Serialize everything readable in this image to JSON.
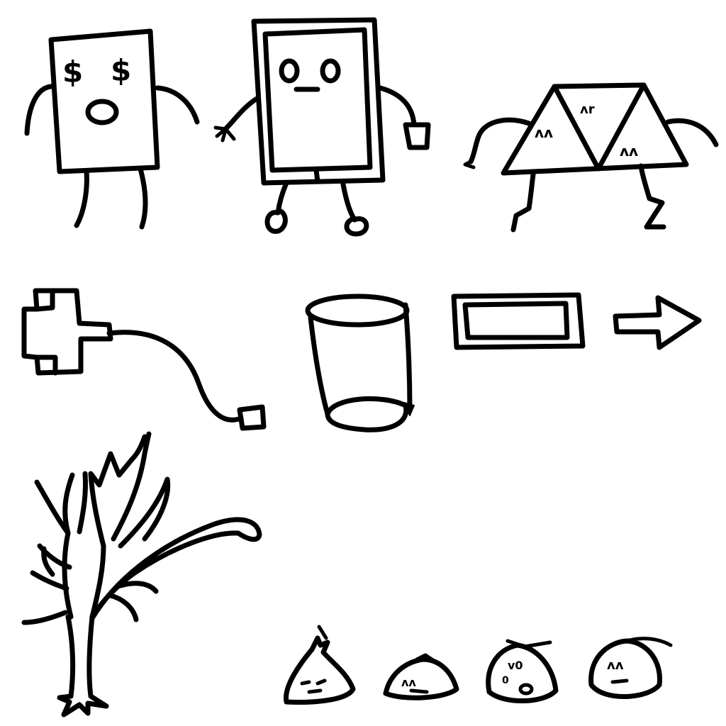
{
  "drawing": {
    "ink_color": "#000000",
    "background_color": "#ffffff",
    "eye_glyph": "$",
    "figures": [
      "wallet-character-icon",
      "smartphone-character-icon",
      "triangles-character-icon",
      "usb-plug-cable-icon",
      "trash-bin-icon",
      "rectangle-bar-icon",
      "right-arrow-icon",
      "bare-tree-icon",
      "small-blob-faces-icon"
    ]
  }
}
